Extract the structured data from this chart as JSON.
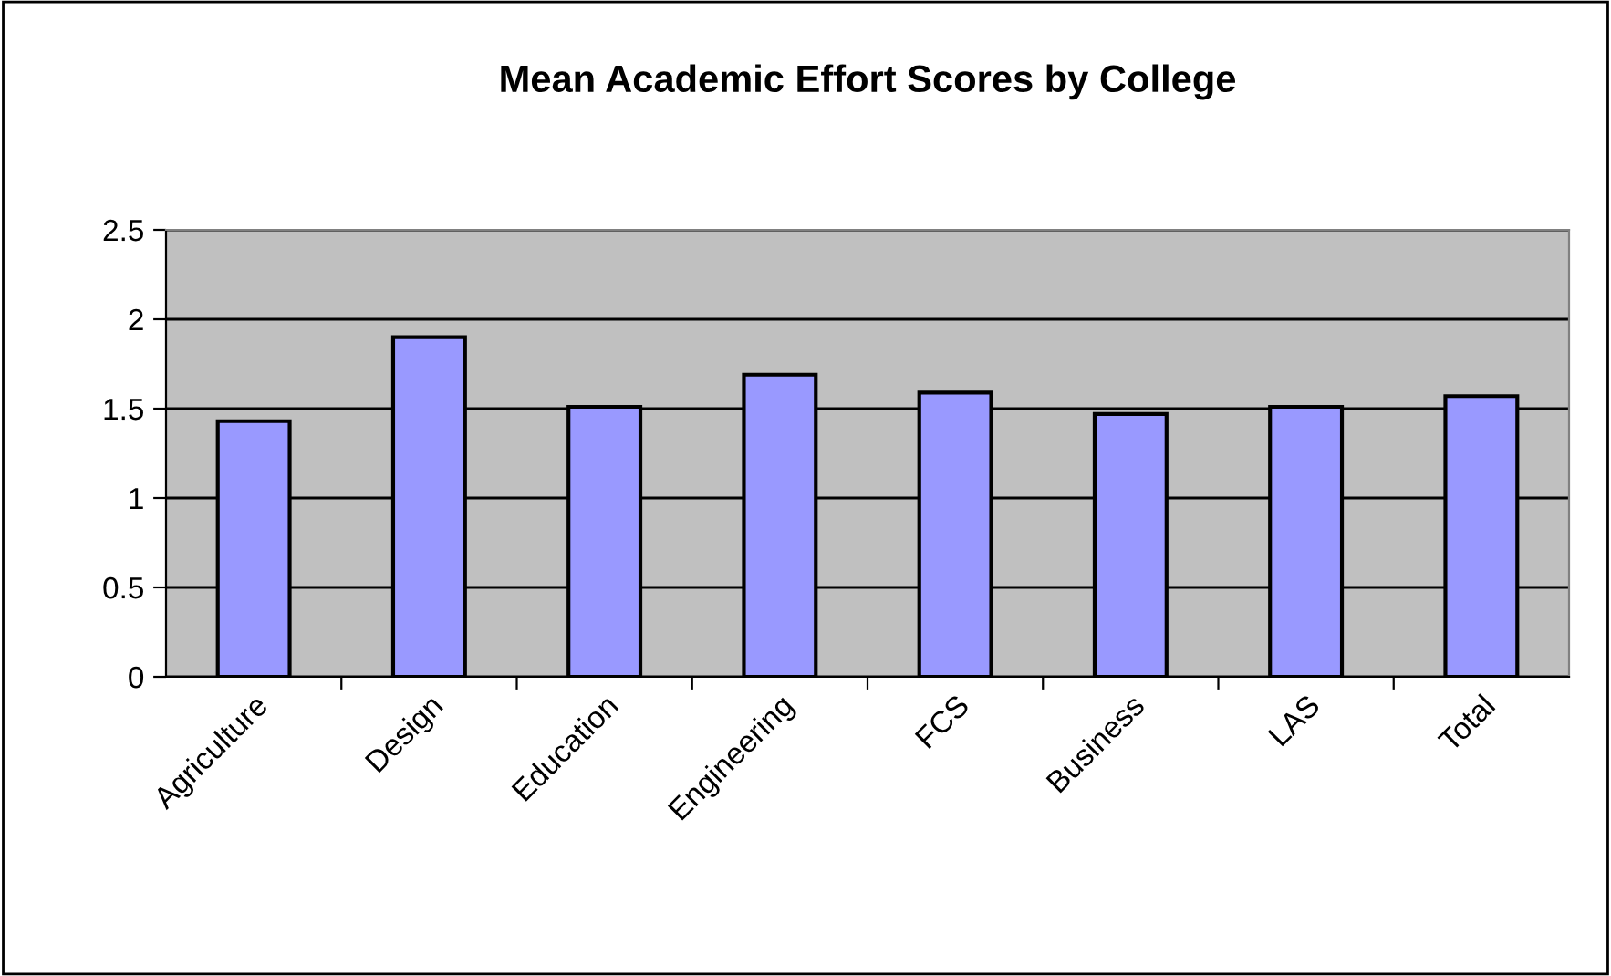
{
  "chart_data": {
    "type": "bar",
    "title": "Mean Academic Effort Scores by College",
    "categories": [
      "Agriculture",
      "Design",
      "Education",
      "Engineering",
      "FCS",
      "Business",
      "LAS",
      "Total"
    ],
    "values": [
      1.43,
      1.9,
      1.51,
      1.69,
      1.59,
      1.47,
      1.51,
      1.57
    ],
    "color": "#9999ff",
    "ylim": [
      0,
      2.5
    ],
    "yticks": [
      0,
      0.5,
      1,
      1.5,
      2,
      2.5
    ],
    "grid": "y",
    "legend": false
  }
}
